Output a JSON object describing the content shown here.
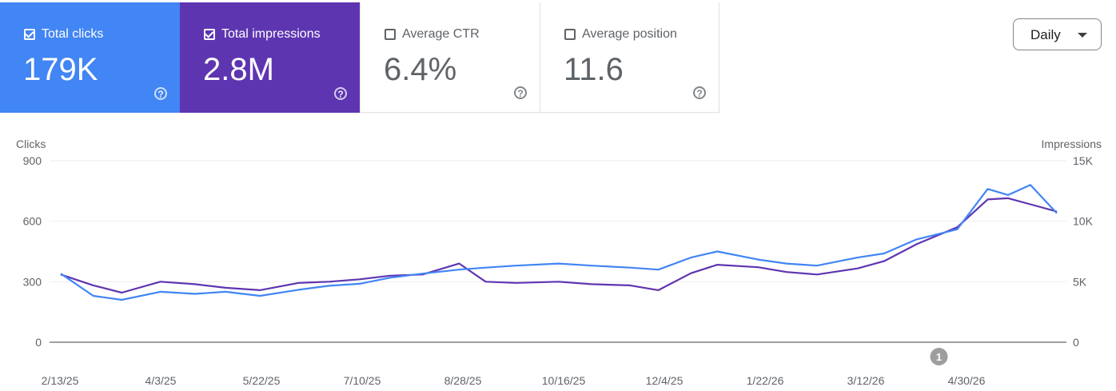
{
  "metrics": {
    "clicks": {
      "label": "Total clicks",
      "value": "179K",
      "checked": true,
      "help_icon": "question-icon"
    },
    "impressions": {
      "label": "Total impressions",
      "value": "2.8M",
      "checked": true,
      "help_icon": "question-icon"
    },
    "ctr": {
      "label": "Average CTR",
      "value": "6.4%",
      "checked": false,
      "help_icon": "question-icon"
    },
    "position": {
      "label": "Average position",
      "value": "11.6",
      "checked": false,
      "help_icon": "question-icon"
    }
  },
  "controls": {
    "granularity": "Daily"
  },
  "colors": {
    "clicks": "#4285f4",
    "impressions": "#5e35b1"
  },
  "chart_data": {
    "type": "line",
    "left_axis_label": "Clicks",
    "right_axis_label": "Impressions",
    "left_ticks": [
      "0",
      "300",
      "600",
      "900"
    ],
    "right_ticks": [
      "0",
      "5K",
      "10K",
      "15K"
    ],
    "ylim_left": [
      0,
      900
    ],
    "ylim_right": [
      0,
      15000
    ],
    "x_tick_labels": [
      "2/13/25",
      "4/3/25",
      "5/22/25",
      "7/10/25",
      "8/28/25",
      "10/16/25",
      "12/4/25",
      "1/22/26",
      "3/12/26",
      "4/30/26"
    ],
    "x_range": [
      "2025-02-13",
      "2026-06-18"
    ],
    "annotation": {
      "label": "1",
      "date": "2026-04-21"
    },
    "series": [
      {
        "name": "Clicks",
        "axis": "left",
        "color": "#4285f4",
        "x": [
          "2025-02-13",
          "2025-03-01",
          "2025-03-15",
          "2025-04-03",
          "2025-04-20",
          "2025-05-05",
          "2025-05-22",
          "2025-06-10",
          "2025-06-25",
          "2025-07-10",
          "2025-07-25",
          "2025-08-10",
          "2025-08-28",
          "2025-09-10",
          "2025-09-25",
          "2025-10-16",
          "2025-11-01",
          "2025-11-20",
          "2025-12-04",
          "2025-12-20",
          "2026-01-02",
          "2026-01-22",
          "2026-02-05",
          "2026-02-20",
          "2026-03-12",
          "2026-03-25",
          "2026-04-10",
          "2026-04-30",
          "2026-05-15",
          "2026-05-25",
          "2026-06-05",
          "2026-06-18"
        ],
        "values": [
          340,
          230,
          210,
          250,
          240,
          250,
          230,
          260,
          280,
          290,
          320,
          340,
          360,
          370,
          380,
          390,
          380,
          370,
          360,
          420,
          450,
          410,
          390,
          380,
          420,
          440,
          510,
          560,
          760,
          730,
          780,
          640
        ]
      },
      {
        "name": "Impressions",
        "axis": "right",
        "color": "#5e35b1",
        "x": [
          "2025-02-13",
          "2025-03-01",
          "2025-03-15",
          "2025-04-03",
          "2025-04-20",
          "2025-05-05",
          "2025-05-22",
          "2025-06-10",
          "2025-06-25",
          "2025-07-10",
          "2025-07-25",
          "2025-08-10",
          "2025-08-28",
          "2025-09-10",
          "2025-09-25",
          "2025-10-16",
          "2025-11-01",
          "2025-11-20",
          "2025-12-04",
          "2025-12-20",
          "2026-01-02",
          "2026-01-22",
          "2026-02-05",
          "2026-02-20",
          "2026-03-12",
          "2026-03-25",
          "2026-04-10",
          "2026-04-30",
          "2026-05-15",
          "2026-05-25",
          "2026-06-05",
          "2026-06-18"
        ],
        "values": [
          5600,
          4700,
          4100,
          5000,
          4800,
          4500,
          4300,
          4900,
          5000,
          5200,
          5500,
          5600,
          6500,
          5000,
          4900,
          5000,
          4800,
          4700,
          4300,
          5700,
          6400,
          6200,
          5800,
          5600,
          6100,
          6700,
          8100,
          9500,
          11800,
          11900,
          11400,
          10800
        ]
      }
    ]
  }
}
